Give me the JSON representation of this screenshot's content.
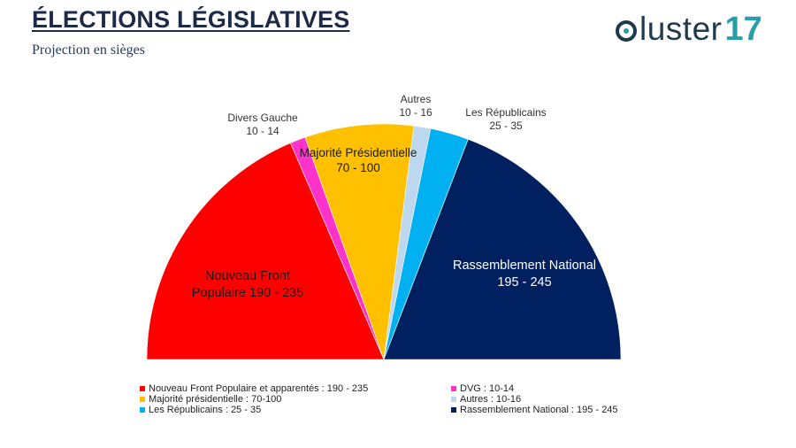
{
  "header": {
    "title": "ÉLECTIONS LÉGISLATIVES",
    "subtitle": "Projection en sièges"
  },
  "logo": {
    "text": "luster",
    "number": "17",
    "brand_dark": "#1f3a4c",
    "brand_accent": "#2a9da8"
  },
  "chart_data": {
    "type": "pie",
    "subtype": "semicircle",
    "title": "Projection en sièges",
    "unit": "sièges",
    "slices": [
      {
        "name": "Nouveau Front Populaire",
        "label": "Nouveau Front Populaire 190 - 235",
        "range": [
          190,
          235
        ],
        "value": 212.5,
        "color": "#ff0000"
      },
      {
        "name": "Divers Gauche",
        "label": "Divers Gauche 10 - 14",
        "range": [
          10,
          14
        ],
        "value": 12,
        "color": "#ff33cc"
      },
      {
        "name": "Majorité Présidentielle",
        "label": "Majorité Présidentielle 70 - 100",
        "range": [
          70,
          100
        ],
        "value": 85,
        "color": "#ffc000"
      },
      {
        "name": "Autres",
        "label": "Autres 10 - 16",
        "range": [
          10,
          16
        ],
        "value": 13,
        "color": "#bdd7ee"
      },
      {
        "name": "Les Républicains",
        "label": "Les Républicains 25 - 35",
        "range": [
          25,
          35
        ],
        "value": 30,
        "color": "#00b0f0"
      },
      {
        "name": "Rassemblement National",
        "label": "Rassemblement National 195 - 245",
        "range": [
          195,
          245
        ],
        "value": 220,
        "color": "#002060"
      }
    ],
    "slice_labels": {
      "nfp": [
        "Nouveau Front",
        "Populaire 190 - 235"
      ],
      "dvg": [
        "Divers Gauche",
        "10 - 14"
      ],
      "maj": [
        "Majorité Présidentielle",
        "70 - 100"
      ],
      "aut": [
        "Autres",
        "10 - 16"
      ],
      "lr": [
        "Les Républicains",
        "25 - 35"
      ],
      "rn": [
        "Rassemblement National",
        "195 - 245"
      ]
    },
    "legend": [
      {
        "text": "Nouveau Front Populaire et apparentés : 190 - 235",
        "color": "#ff0000"
      },
      {
        "text": "DVG : 10-14",
        "color": "#ff33cc"
      },
      {
        "text": "Majorité présidentielle : 70-100",
        "color": "#ffc000"
      },
      {
        "text": "Autres : 10-16",
        "color": "#bdd7ee"
      },
      {
        "text": "Les Républicains : 25 - 35",
        "color": "#00b0f0"
      },
      {
        "text": "Rassemblement National : 195 - 245",
        "color": "#002060"
      }
    ]
  }
}
